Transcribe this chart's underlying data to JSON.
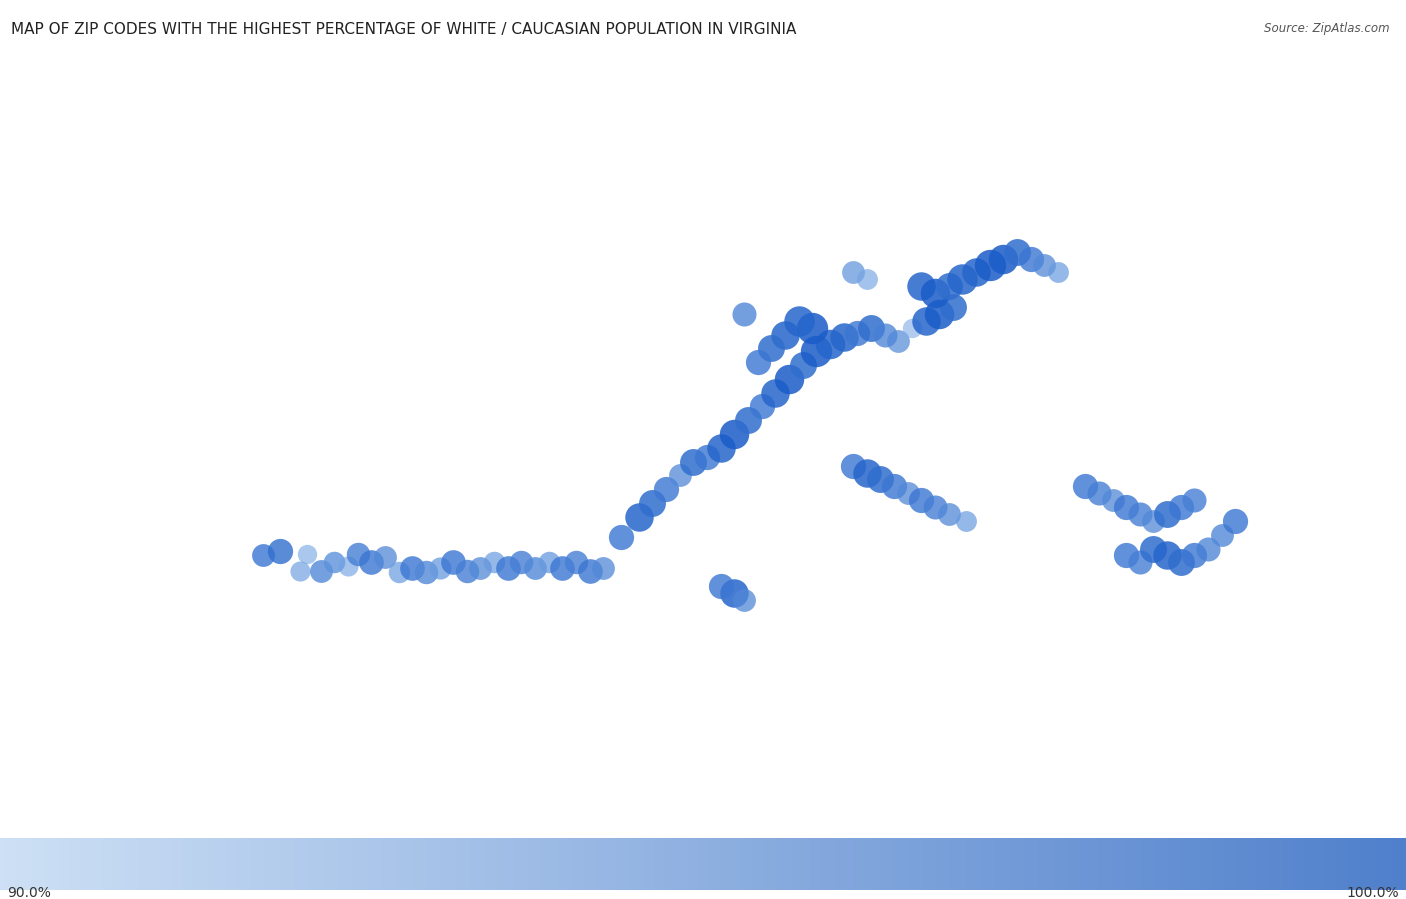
{
  "title": "MAP OF ZIP CODES WITH THE HIGHEST PERCENTAGE OF WHITE / CAUCASIAN POPULATION IN VIRGINIA",
  "source": "Source: ZipAtlas.com",
  "colorbar_label_min": "90.0%",
  "colorbar_label_max": "100.0%",
  "map_extent": [
    -84.8,
    35.0,
    -74.5,
    40.6
  ],
  "title_fontsize": 11,
  "colorbar_color_left": "#cde0f5",
  "colorbar_color_right": "#5080cc",
  "points": [
    {
      "lon": -82.87,
      "lat": 36.87,
      "size": 900,
      "alpha": 0.8,
      "val": 0.97
    },
    {
      "lon": -82.75,
      "lat": 36.9,
      "size": 1100,
      "alpha": 0.8,
      "val": 0.98
    },
    {
      "lon": -82.6,
      "lat": 36.76,
      "size": 700,
      "alpha": 0.65,
      "val": 0.93
    },
    {
      "lon": -82.55,
      "lat": 36.88,
      "size": 650,
      "alpha": 0.6,
      "val": 0.92
    },
    {
      "lon": -82.45,
      "lat": 36.76,
      "size": 900,
      "alpha": 0.8,
      "val": 0.95
    },
    {
      "lon": -82.35,
      "lat": 36.82,
      "size": 800,
      "alpha": 0.8,
      "val": 0.94
    },
    {
      "lon": -82.25,
      "lat": 36.79,
      "size": 700,
      "alpha": 0.65,
      "val": 0.92
    },
    {
      "lon": -82.18,
      "lat": 36.88,
      "size": 950,
      "alpha": 0.8,
      "val": 0.96
    },
    {
      "lon": -82.08,
      "lat": 36.82,
      "size": 1050,
      "alpha": 0.8,
      "val": 0.97
    },
    {
      "lon": -81.98,
      "lat": 36.86,
      "size": 900,
      "alpha": 0.75,
      "val": 0.95
    },
    {
      "lon": -81.88,
      "lat": 36.75,
      "size": 800,
      "alpha": 0.7,
      "val": 0.93
    },
    {
      "lon": -81.78,
      "lat": 36.78,
      "size": 1050,
      "alpha": 0.8,
      "val": 0.97
    },
    {
      "lon": -81.68,
      "lat": 36.75,
      "size": 950,
      "alpha": 0.8,
      "val": 0.95
    },
    {
      "lon": -81.58,
      "lat": 36.78,
      "size": 850,
      "alpha": 0.75,
      "val": 0.93
    },
    {
      "lon": -81.48,
      "lat": 36.82,
      "size": 1050,
      "alpha": 0.8,
      "val": 0.97
    },
    {
      "lon": -81.38,
      "lat": 36.76,
      "size": 950,
      "alpha": 0.8,
      "val": 0.96
    },
    {
      "lon": -81.28,
      "lat": 36.78,
      "size": 900,
      "alpha": 0.75,
      "val": 0.95
    },
    {
      "lon": -81.18,
      "lat": 36.82,
      "size": 800,
      "alpha": 0.7,
      "val": 0.93
    },
    {
      "lon": -81.08,
      "lat": 36.78,
      "size": 1050,
      "alpha": 0.8,
      "val": 0.97
    },
    {
      "lon": -80.98,
      "lat": 36.82,
      "size": 950,
      "alpha": 0.8,
      "val": 0.96
    },
    {
      "lon": -80.88,
      "lat": 36.78,
      "size": 900,
      "alpha": 0.8,
      "val": 0.95
    },
    {
      "lon": -80.78,
      "lat": 36.82,
      "size": 800,
      "alpha": 0.75,
      "val": 0.93
    },
    {
      "lon": -80.68,
      "lat": 36.78,
      "size": 1050,
      "alpha": 0.8,
      "val": 0.97
    },
    {
      "lon": -80.58,
      "lat": 36.82,
      "size": 950,
      "alpha": 0.8,
      "val": 0.96
    },
    {
      "lon": -80.48,
      "lat": 36.76,
      "size": 1050,
      "alpha": 0.8,
      "val": 0.97
    },
    {
      "lon": -80.38,
      "lat": 36.78,
      "size": 900,
      "alpha": 0.75,
      "val": 0.95
    },
    {
      "lon": -80.25,
      "lat": 37.0,
      "size": 1100,
      "alpha": 0.8,
      "val": 0.97
    },
    {
      "lon": -80.12,
      "lat": 37.15,
      "size": 1400,
      "alpha": 0.85,
      "val": 0.99
    },
    {
      "lon": -80.02,
      "lat": 37.25,
      "size": 1250,
      "alpha": 0.85,
      "val": 0.98
    },
    {
      "lon": -79.92,
      "lat": 37.35,
      "size": 1100,
      "alpha": 0.8,
      "val": 0.97
    },
    {
      "lon": -79.82,
      "lat": 37.45,
      "size": 900,
      "alpha": 0.75,
      "val": 0.95
    },
    {
      "lon": -79.72,
      "lat": 37.55,
      "size": 1250,
      "alpha": 0.85,
      "val": 0.98
    },
    {
      "lon": -79.62,
      "lat": 37.58,
      "size": 1100,
      "alpha": 0.8,
      "val": 0.97
    },
    {
      "lon": -79.52,
      "lat": 37.65,
      "size": 1400,
      "alpha": 0.85,
      "val": 0.99
    },
    {
      "lon": -79.42,
      "lat": 37.75,
      "size": 1500,
      "alpha": 0.85,
      "val": 1.0
    },
    {
      "lon": -79.32,
      "lat": 37.85,
      "size": 1250,
      "alpha": 0.85,
      "val": 0.98
    },
    {
      "lon": -79.22,
      "lat": 37.95,
      "size": 1100,
      "alpha": 0.8,
      "val": 0.97
    },
    {
      "lon": -79.12,
      "lat": 38.05,
      "size": 1400,
      "alpha": 0.85,
      "val": 0.99
    },
    {
      "lon": -79.02,
      "lat": 38.15,
      "size": 1500,
      "alpha": 0.85,
      "val": 1.0
    },
    {
      "lon": -78.92,
      "lat": 38.25,
      "size": 1250,
      "alpha": 0.85,
      "val": 0.98
    },
    {
      "lon": -78.82,
      "lat": 38.35,
      "size": 1700,
      "alpha": 0.85,
      "val": 1.0
    },
    {
      "lon": -78.72,
      "lat": 38.4,
      "size": 1500,
      "alpha": 0.85,
      "val": 0.99
    },
    {
      "lon": -78.62,
      "lat": 38.45,
      "size": 1400,
      "alpha": 0.85,
      "val": 0.99
    },
    {
      "lon": -78.52,
      "lat": 38.48,
      "size": 1100,
      "alpha": 0.8,
      "val": 0.97
    },
    {
      "lon": -78.42,
      "lat": 38.52,
      "size": 1250,
      "alpha": 0.85,
      "val": 0.98
    },
    {
      "lon": -78.32,
      "lat": 38.47,
      "size": 1000,
      "alpha": 0.75,
      "val": 0.96
    },
    {
      "lon": -78.22,
      "lat": 38.42,
      "size": 900,
      "alpha": 0.7,
      "val": 0.95
    },
    {
      "lon": -78.12,
      "lat": 38.52,
      "size": 650,
      "alpha": 0.6,
      "val": 0.91
    },
    {
      "lon": -78.02,
      "lat": 38.57,
      "size": 1400,
      "alpha": 0.85,
      "val": 0.99
    },
    {
      "lon": -77.92,
      "lat": 38.62,
      "size": 1500,
      "alpha": 0.85,
      "val": 1.0
    },
    {
      "lon": -77.82,
      "lat": 38.67,
      "size": 1250,
      "alpha": 0.85,
      "val": 0.98
    },
    {
      "lon": -78.85,
      "lat": 38.52,
      "size": 1700,
      "alpha": 0.85,
      "val": 1.0
    },
    {
      "lon": -78.95,
      "lat": 38.57,
      "size": 1600,
      "alpha": 0.85,
      "val": 0.99
    },
    {
      "lon": -79.05,
      "lat": 38.47,
      "size": 1400,
      "alpha": 0.85,
      "val": 0.99
    },
    {
      "lon": -79.15,
      "lat": 38.37,
      "size": 1250,
      "alpha": 0.85,
      "val": 0.98
    },
    {
      "lon": -79.25,
      "lat": 38.27,
      "size": 1100,
      "alpha": 0.8,
      "val": 0.97
    },
    {
      "lon": -79.35,
      "lat": 38.62,
      "size": 1000,
      "alpha": 0.75,
      "val": 0.96
    },
    {
      "lon": -78.55,
      "lat": 38.92,
      "size": 900,
      "alpha": 0.7,
      "val": 0.94
    },
    {
      "lon": -78.45,
      "lat": 38.87,
      "size": 750,
      "alpha": 0.65,
      "val": 0.92
    },
    {
      "lon": -78.05,
      "lat": 38.82,
      "size": 1400,
      "alpha": 0.85,
      "val": 0.99
    },
    {
      "lon": -77.95,
      "lat": 38.77,
      "size": 1500,
      "alpha": 0.85,
      "val": 1.0
    },
    {
      "lon": -77.85,
      "lat": 38.82,
      "size": 1250,
      "alpha": 0.85,
      "val": 0.98
    },
    {
      "lon": -77.75,
      "lat": 38.87,
      "size": 1600,
      "alpha": 0.85,
      "val": 0.99
    },
    {
      "lon": -77.65,
      "lat": 38.92,
      "size": 1400,
      "alpha": 0.85,
      "val": 0.99
    },
    {
      "lon": -77.55,
      "lat": 38.97,
      "size": 1700,
      "alpha": 0.85,
      "val": 1.0
    },
    {
      "lon": -77.45,
      "lat": 39.02,
      "size": 1500,
      "alpha": 0.85,
      "val": 1.0
    },
    {
      "lon": -77.35,
      "lat": 39.07,
      "size": 1250,
      "alpha": 0.85,
      "val": 0.98
    },
    {
      "lon": -77.25,
      "lat": 39.02,
      "size": 1100,
      "alpha": 0.8,
      "val": 0.97
    },
    {
      "lon": -77.15,
      "lat": 38.97,
      "size": 900,
      "alpha": 0.75,
      "val": 0.95
    },
    {
      "lon": -77.05,
      "lat": 38.92,
      "size": 750,
      "alpha": 0.7,
      "val": 0.93
    },
    {
      "lon": -78.55,
      "lat": 37.52,
      "size": 1100,
      "alpha": 0.8,
      "val": 0.97
    },
    {
      "lon": -78.45,
      "lat": 37.47,
      "size": 1400,
      "alpha": 0.85,
      "val": 0.99
    },
    {
      "lon": -78.35,
      "lat": 37.42,
      "size": 1250,
      "alpha": 0.85,
      "val": 0.98
    },
    {
      "lon": -78.25,
      "lat": 37.37,
      "size": 1100,
      "alpha": 0.8,
      "val": 0.97
    },
    {
      "lon": -78.15,
      "lat": 37.32,
      "size": 900,
      "alpha": 0.75,
      "val": 0.95
    },
    {
      "lon": -78.05,
      "lat": 37.27,
      "size": 1100,
      "alpha": 0.8,
      "val": 0.97
    },
    {
      "lon": -77.95,
      "lat": 37.22,
      "size": 1000,
      "alpha": 0.8,
      "val": 0.96
    },
    {
      "lon": -77.85,
      "lat": 37.17,
      "size": 900,
      "alpha": 0.75,
      "val": 0.95
    },
    {
      "lon": -77.72,
      "lat": 37.12,
      "size": 750,
      "alpha": 0.7,
      "val": 0.93
    },
    {
      "lon": -76.85,
      "lat": 37.37,
      "size": 1100,
      "alpha": 0.8,
      "val": 0.97
    },
    {
      "lon": -76.75,
      "lat": 37.32,
      "size": 1000,
      "alpha": 0.8,
      "val": 0.96
    },
    {
      "lon": -76.65,
      "lat": 37.27,
      "size": 900,
      "alpha": 0.75,
      "val": 0.95
    },
    {
      "lon": -76.55,
      "lat": 37.22,
      "size": 1100,
      "alpha": 0.8,
      "val": 0.97
    },
    {
      "lon": -76.45,
      "lat": 37.17,
      "size": 1000,
      "alpha": 0.8,
      "val": 0.96
    },
    {
      "lon": -76.35,
      "lat": 37.12,
      "size": 900,
      "alpha": 0.75,
      "val": 0.95
    },
    {
      "lon": -76.55,
      "lat": 36.87,
      "size": 1100,
      "alpha": 0.8,
      "val": 0.97
    },
    {
      "lon": -76.45,
      "lat": 36.82,
      "size": 1000,
      "alpha": 0.8,
      "val": 0.96
    },
    {
      "lon": -76.35,
      "lat": 36.92,
      "size": 1250,
      "alpha": 0.85,
      "val": 0.98
    },
    {
      "lon": -76.25,
      "lat": 36.87,
      "size": 1400,
      "alpha": 0.85,
      "val": 0.99
    },
    {
      "lon": -76.15,
      "lat": 36.82,
      "size": 1250,
      "alpha": 0.85,
      "val": 0.98
    },
    {
      "lon": -76.05,
      "lat": 36.87,
      "size": 1100,
      "alpha": 0.8,
      "val": 0.97
    },
    {
      "lon": -75.95,
      "lat": 36.92,
      "size": 1000,
      "alpha": 0.75,
      "val": 0.96
    },
    {
      "lon": -75.85,
      "lat": 37.02,
      "size": 900,
      "alpha": 0.8,
      "val": 0.95
    },
    {
      "lon": -75.75,
      "lat": 37.12,
      "size": 1100,
      "alpha": 0.8,
      "val": 0.97
    },
    {
      "lon": -76.25,
      "lat": 37.17,
      "size": 1250,
      "alpha": 0.85,
      "val": 0.98
    },
    {
      "lon": -76.15,
      "lat": 37.22,
      "size": 1100,
      "alpha": 0.8,
      "val": 0.97
    },
    {
      "lon": -76.05,
      "lat": 37.27,
      "size": 1000,
      "alpha": 0.8,
      "val": 0.96
    },
    {
      "lon": -79.42,
      "lat": 36.6,
      "size": 1400,
      "alpha": 0.85,
      "val": 0.99
    },
    {
      "lon": -79.52,
      "lat": 36.65,
      "size": 1100,
      "alpha": 0.8,
      "val": 0.97
    },
    {
      "lon": -79.35,
      "lat": 36.55,
      "size": 900,
      "alpha": 0.75,
      "val": 0.95
    }
  ]
}
